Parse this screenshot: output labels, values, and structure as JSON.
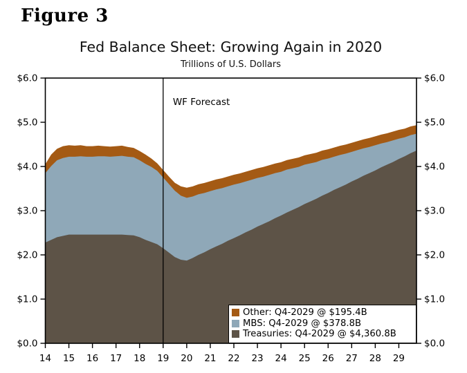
{
  "figure_label": "Figure 3",
  "chart_data": {
    "type": "area",
    "stacked": true,
    "title": "Fed Balance Sheet: Growing Again in 2020",
    "subtitle": "Trillions of U.S. Dollars",
    "unit": "Trillions of U.S. Dollars",
    "x_start": 2014,
    "x_step": 0.25,
    "xlim": [
      2014,
      2029.75
    ],
    "ylim": [
      0,
      6
    ],
    "grid": false,
    "x_tick_years": [
      2014,
      2015,
      2016,
      2017,
      2018,
      2019,
      2020,
      2021,
      2022,
      2023,
      2024,
      2025,
      2026,
      2027,
      2028,
      2029
    ],
    "x_tick_labels": [
      "14",
      "15",
      "16",
      "17",
      "18",
      "19",
      "20",
      "21",
      "22",
      "23",
      "24",
      "25",
      "26",
      "27",
      "28",
      "29"
    ],
    "y_tick_values": [
      0,
      1,
      2,
      3,
      4,
      5,
      6
    ],
    "y_tick_labels": [
      "$0.0",
      "$1.0",
      "$2.0",
      "$3.0",
      "$4.0",
      "$5.0",
      "$6.0"
    ],
    "axis_color": "#000000",
    "annotation": {
      "label": "WF Forecast",
      "x": 2019
    },
    "legend_position": "bottom-right",
    "series": [
      {
        "name": "Treasuries",
        "legend_label": "Treasuries: Q4-2029 @ $4,360.8B",
        "color": "#5d5347",
        "values": [
          2.28,
          2.34,
          2.4,
          2.43,
          2.46,
          2.46,
          2.46,
          2.46,
          2.46,
          2.46,
          2.46,
          2.46,
          2.46,
          2.46,
          2.45,
          2.44,
          2.4,
          2.34,
          2.29,
          2.24,
          2.15,
          2.05,
          1.95,
          1.89,
          1.87,
          1.93,
          2.0,
          2.06,
          2.13,
          2.19,
          2.25,
          2.32,
          2.38,
          2.44,
          2.51,
          2.57,
          2.64,
          2.7,
          2.76,
          2.83,
          2.89,
          2.96,
          3.02,
          3.08,
          3.15,
          3.21,
          3.27,
          3.34,
          3.4,
          3.47,
          3.53,
          3.59,
          3.66,
          3.72,
          3.79,
          3.85,
          3.91,
          3.98,
          4.04,
          4.1,
          4.17,
          4.23,
          4.3,
          4.36
        ]
      },
      {
        "name": "MBS",
        "legend_label": "MBS: Q4-2029 @ $378.8B",
        "color": "#8fa8b8",
        "values": [
          1.57,
          1.67,
          1.74,
          1.76,
          1.76,
          1.76,
          1.77,
          1.76,
          1.76,
          1.77,
          1.77,
          1.76,
          1.77,
          1.78,
          1.77,
          1.77,
          1.74,
          1.72,
          1.7,
          1.66,
          1.6,
          1.55,
          1.5,
          1.45,
          1.42,
          1.39,
          1.37,
          1.34,
          1.31,
          1.29,
          1.26,
          1.23,
          1.21,
          1.18,
          1.15,
          1.13,
          1.1,
          1.07,
          1.05,
          1.02,
          0.99,
          0.97,
          0.94,
          0.91,
          0.89,
          0.86,
          0.83,
          0.81,
          0.78,
          0.75,
          0.73,
          0.7,
          0.67,
          0.65,
          0.62,
          0.59,
          0.57,
          0.54,
          0.51,
          0.49,
          0.46,
          0.43,
          0.41,
          0.38
        ]
      },
      {
        "name": "Other",
        "legend_label": "Other: Q4-2029 @ $195.4B",
        "color": "#a45a14",
        "values": [
          0.2,
          0.26,
          0.26,
          0.27,
          0.26,
          0.25,
          0.25,
          0.24,
          0.24,
          0.24,
          0.23,
          0.23,
          0.23,
          0.23,
          0.22,
          0.21,
          0.21,
          0.21,
          0.19,
          0.17,
          0.17,
          0.17,
          0.18,
          0.21,
          0.23,
          0.229,
          0.228,
          0.227,
          0.226,
          0.226,
          0.225,
          0.224,
          0.223,
          0.222,
          0.221,
          0.22,
          0.219,
          0.219,
          0.218,
          0.217,
          0.216,
          0.215,
          0.214,
          0.213,
          0.212,
          0.212,
          0.211,
          0.21,
          0.209,
          0.208,
          0.207,
          0.206,
          0.205,
          0.205,
          0.204,
          0.203,
          0.202,
          0.201,
          0.2,
          0.199,
          0.198,
          0.197,
          0.196,
          0.195
        ]
      }
    ]
  }
}
